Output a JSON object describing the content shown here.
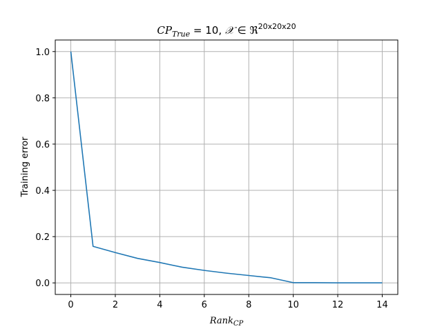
{
  "chart_data": {
    "type": "line",
    "title": {
      "cp_symbol": "CP",
      "cp_subscript": "True",
      "equals_part": " = 10, ",
      "tensor_symbol": "𝒳",
      "in_part": " ∈ ",
      "real_symbol": "ℜ",
      "superscript": "20x20x20"
    },
    "xlabel": {
      "main": "Rank",
      "subscript": "CP"
    },
    "ylabel": "Training error",
    "xlim": [
      -0.7,
      14.7
    ],
    "ylim": [
      -0.05,
      1.05
    ],
    "xticks": [
      0,
      2,
      4,
      6,
      8,
      10,
      12,
      14
    ],
    "xtick_labels": [
      "0",
      "2",
      "4",
      "6",
      "8",
      "10",
      "12",
      "14"
    ],
    "yticks": [
      0.0,
      0.2,
      0.4,
      0.6,
      0.8,
      1.0
    ],
    "ytick_labels": [
      "0.0",
      "0.2",
      "0.4",
      "0.6",
      "0.8",
      "1.0"
    ],
    "grid": true,
    "series": [
      {
        "color": "#1f77b4",
        "x": [
          0,
          1,
          2,
          3,
          4,
          5,
          6,
          7,
          8,
          9,
          10,
          11,
          12,
          13,
          14
        ],
        "y": [
          1.0,
          0.158,
          0.131,
          0.106,
          0.088,
          0.068,
          0.054,
          0.042,
          0.032,
          0.022,
          0.001,
          0.001,
          0.0,
          0.0,
          0.0
        ]
      }
    ]
  }
}
